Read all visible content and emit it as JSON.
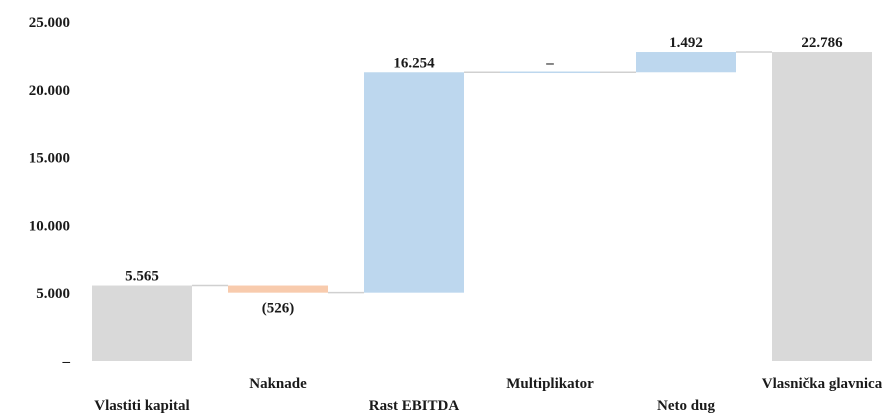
{
  "chart_data": {
    "type": "bar",
    "subtype": "waterfall",
    "title": "",
    "xlabel": "",
    "ylabel": "",
    "ylim": [
      0,
      25000
    ],
    "yticks": [
      {
        "value": 0,
        "label": "–"
      },
      {
        "value": 5000,
        "label": "5.000"
      },
      {
        "value": 10000,
        "label": "10.000"
      },
      {
        "value": 15000,
        "label": "15.000"
      },
      {
        "value": 20000,
        "label": "20.000"
      },
      {
        "value": 25000,
        "label": "25.000"
      }
    ],
    "grid": false,
    "legend": "none",
    "categories": [
      "Vlastiti kapital",
      "Naknade",
      "Rast EBITDA",
      "Multiplikator",
      "Neto dug",
      "Vlasnička glavnica"
    ],
    "bars": [
      {
        "category": "Vlastiti kapital",
        "kind": "total",
        "start": 0,
        "end": 5565,
        "label": "5.565",
        "color": "#d9d9d9"
      },
      {
        "category": "Naknade",
        "kind": "decrease",
        "start": 5565,
        "end": 5039,
        "label": "(526)",
        "color": "#f8cbad"
      },
      {
        "category": "Rast EBITDA",
        "kind": "increase",
        "start": 5039,
        "end": 21293,
        "label": "16.254",
        "color": "#bdd7ee"
      },
      {
        "category": "Multiplikator",
        "kind": "increase",
        "start": 21293,
        "end": 21293,
        "label": "–",
        "color": "#bdd7ee"
      },
      {
        "category": "Neto dug",
        "kind": "increase",
        "start": 21293,
        "end": 22786,
        "label": "1.492",
        "color": "#bdd7ee"
      },
      {
        "category": "Vlasnička glavnica",
        "kind": "total",
        "start": 0,
        "end": 22786,
        "label": "22.786",
        "color": "#d9d9d9"
      }
    ]
  }
}
